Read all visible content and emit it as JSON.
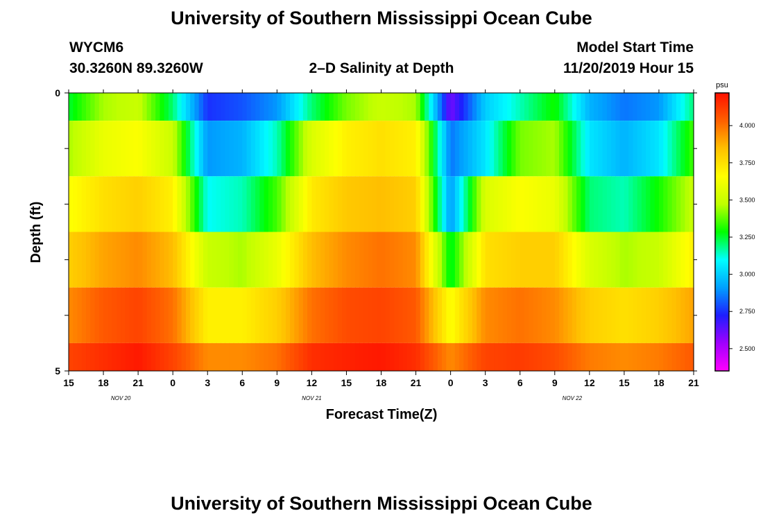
{
  "header": {
    "title": "University of Southern Mississippi Ocean Cube",
    "station": "WYCM6",
    "coords": "30.3260N 89.3260W",
    "plot_title": "2–D Salinity at Depth",
    "model_start_label": "Model Start Time",
    "model_start_value": "11/20/2019 Hour 15"
  },
  "footer": {
    "title": "University of Southern Mississippi Ocean Cube"
  },
  "colors": {
    "scale": [
      "#ff00ff",
      "#a000ff",
      "#1e1eff",
      "#00a0ff",
      "#00ffff",
      "#00ff00",
      "#c0ff00",
      "#ffff00",
      "#ffc000",
      "#ff6000",
      "#ff1000"
    ]
  },
  "chart_data": {
    "type": "heatmap",
    "title": "2–D Salinity at Depth",
    "xlabel": "Forecast Time(Z)",
    "ylabel": "Depth (ft)",
    "unit": "psu",
    "x_tick_labels": [
      "15",
      "18",
      "21",
      "0",
      "3",
      "6",
      "9",
      "12",
      "15",
      "18",
      "21",
      "0",
      "3",
      "6",
      "9",
      "12",
      "15",
      "18",
      "21"
    ],
    "date_labels": [
      {
        "text": "NOV 20",
        "at_tick": 1.5
      },
      {
        "text": "NOV 21",
        "at_tick": 7
      },
      {
        "text": "NOV 22",
        "at_tick": 14.5
      }
    ],
    "y_tick_labels": [
      {
        "value": 0,
        "text": "0"
      },
      {
        "value": 1,
        "text": ""
      },
      {
        "value": 2,
        "text": ""
      },
      {
        "value": 3,
        "text": ""
      },
      {
        "value": 4,
        "text": ""
      },
      {
        "value": 5,
        "text": "5"
      }
    ],
    "ylim": [
      0,
      5
    ],
    "colorbar": {
      "min": 2.35,
      "max": 4.22,
      "ticks": [
        "2.500",
        "2.750",
        "3.000",
        "3.250",
        "3.500",
        "3.750",
        "4.000"
      ]
    },
    "x_hours_from_start": [
      0,
      3,
      6,
      9,
      12,
      15,
      18,
      21,
      24,
      27,
      30,
      33,
      36,
      39,
      42,
      45,
      48,
      51,
      54
    ],
    "depth_layers": [
      {
        "depth": [
          0.0,
          0.5
        ],
        "values": [
          3.25,
          3.45,
          3.5,
          3.2,
          2.75,
          2.8,
          2.9,
          3.2,
          3.4,
          3.5,
          3.45,
          2.6,
          3.0,
          3.15,
          3.3,
          2.95,
          2.85,
          2.9,
          3.2
        ]
      },
      {
        "depth": [
          0.5,
          1.5
        ],
        "values": [
          3.45,
          3.6,
          3.65,
          3.5,
          2.9,
          2.95,
          3.15,
          3.55,
          3.7,
          3.75,
          3.7,
          2.85,
          3.05,
          3.4,
          3.45,
          3.05,
          2.95,
          3.05,
          3.35
        ]
      },
      {
        "depth": [
          1.5,
          2.5
        ],
        "values": [
          3.65,
          3.75,
          3.8,
          3.7,
          3.1,
          3.15,
          3.35,
          3.72,
          3.82,
          3.85,
          3.8,
          2.9,
          3.55,
          3.65,
          3.6,
          3.2,
          3.15,
          3.3,
          3.5
        ]
      },
      {
        "depth": [
          2.5,
          3.5
        ],
        "values": [
          3.8,
          3.9,
          3.95,
          3.85,
          3.5,
          3.45,
          3.6,
          3.85,
          3.95,
          4.0,
          3.95,
          3.25,
          3.75,
          3.8,
          3.8,
          3.55,
          3.45,
          3.5,
          3.7
        ]
      },
      {
        "depth": [
          3.5,
          4.5
        ],
        "values": [
          3.95,
          4.05,
          4.1,
          4.0,
          3.7,
          3.7,
          3.8,
          4.0,
          4.08,
          4.1,
          4.05,
          3.65,
          3.95,
          4.0,
          3.95,
          3.8,
          3.75,
          3.8,
          3.9
        ]
      },
      {
        "depth": [
          4.5,
          5.0
        ],
        "values": [
          4.1,
          4.15,
          4.2,
          4.1,
          3.95,
          3.95,
          4.0,
          4.15,
          4.18,
          4.2,
          4.15,
          3.95,
          4.1,
          4.12,
          4.08,
          3.98,
          3.95,
          3.98,
          4.05
        ]
      }
    ]
  }
}
